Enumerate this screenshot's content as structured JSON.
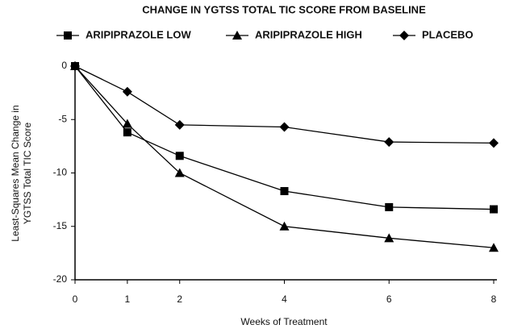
{
  "chart_data": {
    "type": "line",
    "title": "CHANGE IN YGTSS TOTAL TIC SCORE FROM BASELINE",
    "xlabel": "Weeks of Treatment",
    "ylabel": [
      "Least-Squares Mean Change in",
      "YGTSS Total TIC Score"
    ],
    "x": [
      0,
      1,
      2,
      4,
      6,
      8
    ],
    "xlim": [
      0,
      8
    ],
    "xticks": [
      0,
      1,
      2,
      4,
      6,
      8
    ],
    "ylim": [
      -20,
      0
    ],
    "yticks": [
      0,
      -5,
      -10,
      -15,
      -20
    ],
    "series": [
      {
        "name": "ARIPIPRAZOLE LOW",
        "color": "#000000",
        "marker": "square",
        "values": [
          0,
          -6.2,
          -8.4,
          -11.7,
          -13.2,
          -13.4
        ]
      },
      {
        "name": "ARIPIPRAZOLE HIGH",
        "color": "#000000",
        "marker": "triangle",
        "values": [
          0,
          -5.4,
          -10.0,
          -15.0,
          -16.1,
          -17.0
        ]
      },
      {
        "name": "PLACEBO",
        "color": "#000000",
        "marker": "diamond",
        "values": [
          0,
          -2.4,
          -5.5,
          -5.7,
          -7.1,
          -7.2
        ]
      }
    ]
  }
}
